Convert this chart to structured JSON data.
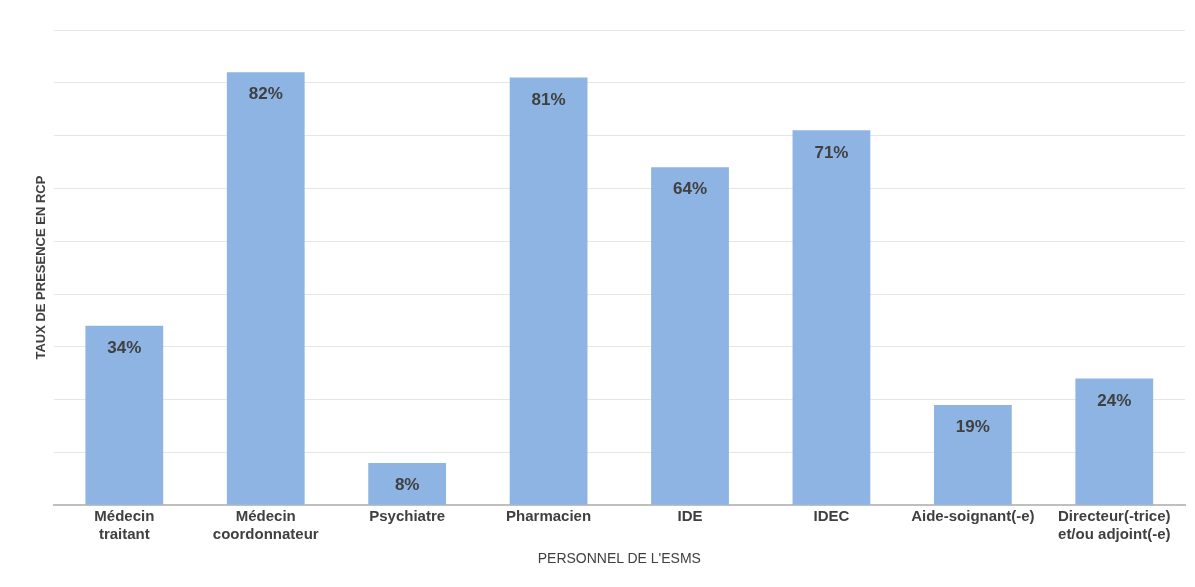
{
  "chart_data": {
    "type": "bar",
    "xlabel": "PERSONNEL DE L'ESMS",
    "ylabel": "TAUX DE PRESENCE EN RCP",
    "categories": [
      "Médecin\ntraitant",
      "Médecin\ncoordonnateur",
      "Psychiatre",
      "Pharmacien",
      "IDE",
      "IDEC",
      "Aide-soignant(-e)",
      "Directeur(-trice)\net/ou adjoint(-e)"
    ],
    "values": [
      34,
      82,
      8,
      81,
      64,
      71,
      19,
      24
    ],
    "value_labels": [
      "34%",
      "82%",
      "8%",
      "81%",
      "64%",
      "71%",
      "19%",
      "24%"
    ],
    "color": "#8db4e2",
    "ylim": [
      0,
      90
    ],
    "yticks": [
      {
        "value": 0,
        "label": null
      },
      {
        "value": 10,
        "label": null
      },
      {
        "value": 20,
        "label": null
      },
      {
        "value": 30,
        "label": null
      },
      {
        "value": 40,
        "label": null
      },
      {
        "value": 50,
        "label": null
      },
      {
        "value": 60,
        "label": null
      },
      {
        "value": 70,
        "label": null
      },
      {
        "value": 80,
        "label": null
      },
      {
        "value": 90,
        "label": null
      }
    ],
    "grid": "y",
    "tick_labels": "x"
  }
}
